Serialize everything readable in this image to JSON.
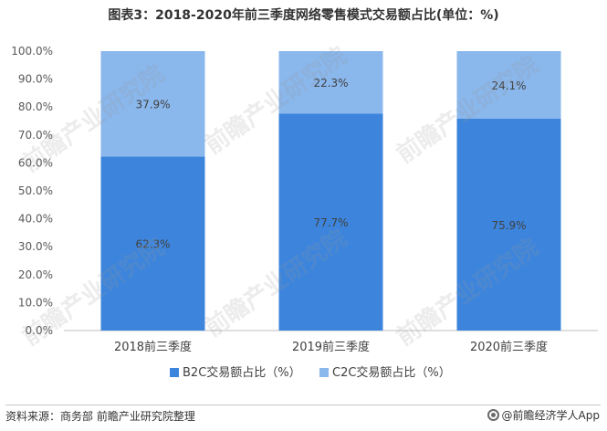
{
  "title": "图表3：2018-2020年前三季度网络零售模式交易额占比(单位：%)",
  "source": "资料来源：商务部 前瞻产业研究院整理",
  "brand": "@前瞻经济学人App",
  "watermark": "前瞻产业研究院",
  "chart_data": {
    "type": "bar",
    "stacked": true,
    "categories": [
      "2018前三季度",
      "2019前三季度",
      "2020前三季度"
    ],
    "series": [
      {
        "name": "B2C交易额占比（%）",
        "values": [
          62.3,
          77.7,
          75.9
        ],
        "labels": [
          "62.3%",
          "77.7%",
          "75.9%"
        ],
        "color": "#3d85dc"
      },
      {
        "name": "C2C交易额占比（%）",
        "values": [
          37.9,
          22.3,
          24.1
        ],
        "labels": [
          "37.9%",
          "22.3%",
          "24.1%"
        ],
        "color": "#8ab7ec"
      }
    ],
    "ylim": [
      0,
      100
    ],
    "yticks": [
      "0.0%",
      "10.0%",
      "20.0%",
      "30.0%",
      "40.0%",
      "50.0%",
      "60.0%",
      "70.0%",
      "80.0%",
      "90.0%",
      "100.0%"
    ],
    "legend": "bottom",
    "grid": false
  }
}
